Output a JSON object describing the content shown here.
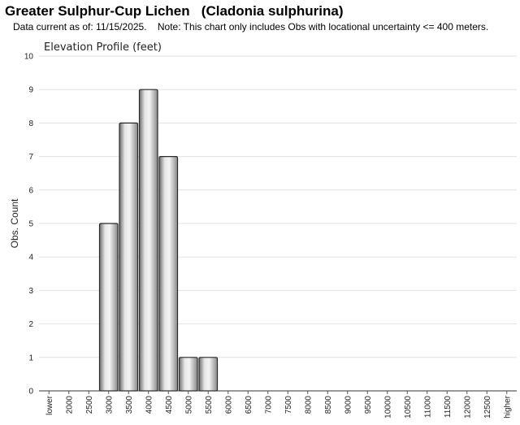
{
  "title": "Greater Sulphur-Cup Lichen   (Cladonia sulphurina)",
  "subtitle": "Data current as of: 11/15/2025.    Note: This chart only includes Obs with locational uncertainty <= 400 meters.",
  "chart_data": {
    "type": "bar",
    "title": "Elevation Profile (feet)",
    "xlabel": "",
    "ylabel": "Obs. Count",
    "ylim": [
      0,
      10
    ],
    "yticks": [
      "0",
      "1",
      "2",
      "3",
      "4",
      "5",
      "6",
      "7",
      "8",
      "9",
      "10"
    ],
    "grid": true,
    "categories": [
      "lower",
      "2000",
      "2500",
      "3000",
      "3500",
      "4000",
      "4500",
      "5000",
      "5500",
      "6000",
      "6500",
      "7000",
      "7500",
      "8000",
      "8500",
      "9000",
      "9500",
      "10000",
      "10500",
      "11000",
      "11500",
      "12000",
      "12500",
      "higher"
    ],
    "values": [
      0,
      0,
      0,
      5,
      8,
      9,
      7,
      1,
      1,
      0,
      0,
      0,
      0,
      0,
      0,
      0,
      0,
      0,
      0,
      0,
      0,
      0,
      0,
      0
    ],
    "bar_color": "#c8c8c8"
  }
}
